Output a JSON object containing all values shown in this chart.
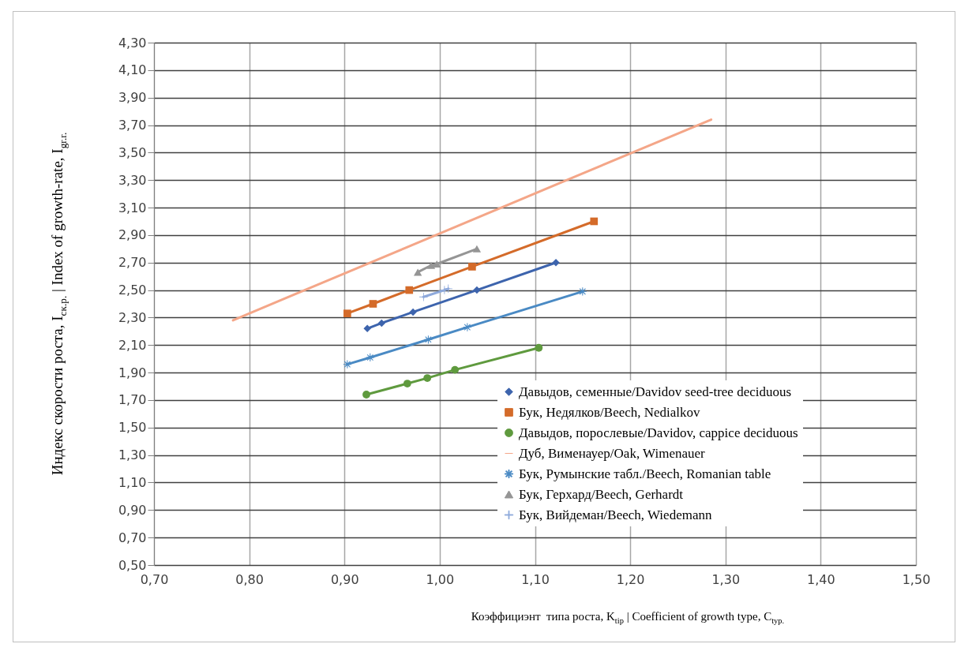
{
  "chart_data": {
    "type": "line",
    "xlabel": "Коэффициэнт  типа роста, K$_{tip}$ | Coefficient of growth type, C$_{typ.}$",
    "ylabel": "Индекс скорости роста, I$_{ск.р.}$ | Index of growth-rate, I$_{gr.r.}$",
    "xlim": [
      0.7,
      1.5
    ],
    "xticks": [
      {
        "value": 0.7,
        "label": "0,70"
      },
      {
        "value": 0.8,
        "label": "0,80"
      },
      {
        "value": 0.9,
        "label": "0,90"
      },
      {
        "value": 1.0,
        "label": "1,00"
      },
      {
        "value": 1.1,
        "label": "1,10"
      },
      {
        "value": 1.2,
        "label": "1,20"
      },
      {
        "value": 1.3,
        "label": "1,30"
      },
      {
        "value": 1.4,
        "label": "1,40"
      },
      {
        "value": 1.5,
        "label": "1,50"
      }
    ],
    "ylim": [
      0.5,
      4.3
    ],
    "yticks": [
      {
        "value": 0.5,
        "label": "0,50"
      },
      {
        "value": 0.7,
        "label": "0,70"
      },
      {
        "value": 0.9,
        "label": "0,90"
      },
      {
        "value": 1.1,
        "label": "1,10"
      },
      {
        "value": 1.3,
        "label": "1,30"
      },
      {
        "value": 1.5,
        "label": "1,50"
      },
      {
        "value": 1.7,
        "label": "1,70"
      },
      {
        "value": 1.9,
        "label": "1,90"
      },
      {
        "value": 2.1,
        "label": "2,10"
      },
      {
        "value": 2.3,
        "label": "2,30"
      },
      {
        "value": 2.5,
        "label": "2,50"
      },
      {
        "value": 2.7,
        "label": "2,70"
      },
      {
        "value": 2.9,
        "label": "2,90"
      },
      {
        "value": 3.1,
        "label": "3,10"
      },
      {
        "value": 3.3,
        "label": "3,30"
      },
      {
        "value": 3.5,
        "label": "3,50"
      },
      {
        "value": 3.7,
        "label": "3,70"
      },
      {
        "value": 3.9,
        "label": "3,90"
      },
      {
        "value": 4.1,
        "label": "4,10"
      },
      {
        "value": 4.3,
        "label": "4,30"
      }
    ],
    "grid": true,
    "legend": "bottom right",
    "line_style": "solid",
    "series": [
      {
        "name": "Давыдов, семенные/Davidov seed-tree deciduous",
        "color": "#3d64ad",
        "marker": "diamond",
        "x": [
          0.924,
          0.939,
          0.972,
          1.039,
          1.122
        ],
        "values": [
          2.22,
          2.26,
          2.34,
          2.5,
          2.7
        ]
      },
      {
        "name": "Бук, Недялков/Beech, Nedialkov",
        "color": "#d46b2a",
        "marker": "square",
        "x": [
          0.903,
          0.93,
          0.968,
          1.034,
          1.162
        ],
        "values": [
          2.33,
          2.4,
          2.5,
          2.67,
          3.0
        ]
      },
      {
        "name": "Давыдов, порослевые/Davidov, cappice deciduous",
        "color": "#5f9a3e",
        "marker": "circle",
        "x": [
          0.923,
          0.966,
          0.987,
          1.016,
          1.104
        ],
        "values": [
          1.74,
          1.82,
          1.86,
          1.92,
          2.08
        ]
      },
      {
        "name": "Дуб, Вименауер/Oak, Wimenauer",
        "color": "#f4a688",
        "marker": "none",
        "x": [
          0.783,
          0.841,
          0.965,
          1.137,
          1.285
        ],
        "values": [
          2.28,
          2.45,
          2.81,
          3.31,
          3.74
        ]
      },
      {
        "name": "Бук, Румынские табл./Beech, Romanian table",
        "color": "#4a8ac4",
        "marker": "star",
        "x": [
          0.903,
          0.927,
          0.988,
          1.029,
          1.15
        ],
        "values": [
          1.96,
          2.01,
          2.14,
          2.23,
          2.49
        ]
      },
      {
        "name": "Бук, Герхард/Beech, Gerhardt",
        "color": "#959595",
        "marker": "triangle",
        "x": [
          0.977,
          0.991,
          0.997,
          1.039
        ],
        "values": [
          2.63,
          2.68,
          2.69,
          2.8
        ]
      },
      {
        "name": "Бук, Вийдеман/Beech, Wiedemann",
        "color": "#8ea9db",
        "marker": "cross",
        "x": [
          0.983,
          1.005,
          1.009
        ],
        "values": [
          2.45,
          2.5,
          2.51
        ]
      }
    ]
  }
}
